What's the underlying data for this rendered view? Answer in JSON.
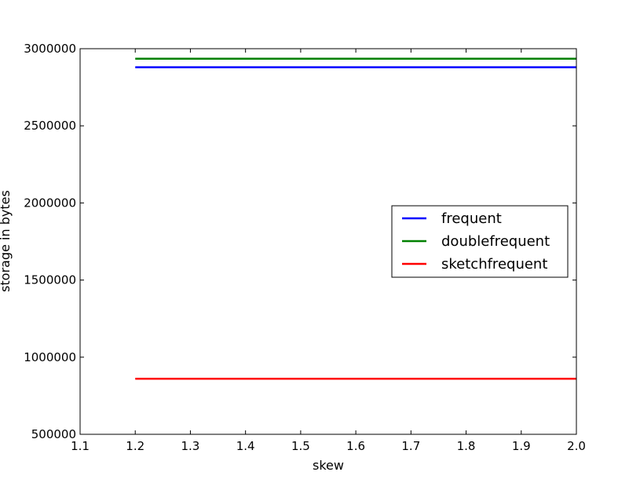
{
  "chart_data": {
    "type": "line",
    "xlabel": "skew",
    "ylabel": "storage in bytes",
    "xlim": [
      1.1,
      2.0
    ],
    "ylim": [
      500000,
      3000000
    ],
    "x_ticks": [
      "1.1",
      "1.2",
      "1.3",
      "1.4",
      "1.5",
      "1.6",
      "1.7",
      "1.8",
      "1.9",
      "2.0"
    ],
    "y_ticks": [
      "500000",
      "1000000",
      "1500000",
      "2000000",
      "2500000",
      "3000000"
    ],
    "legend_position": "center-right",
    "x": [
      1.2,
      1.3,
      1.4,
      1.5,
      1.6,
      1.7,
      1.8,
      1.9,
      2.0
    ],
    "series": [
      {
        "name": "frequent",
        "color": "#0000ff",
        "values": [
          2880000,
          2880000,
          2880000,
          2880000,
          2880000,
          2880000,
          2880000,
          2880000,
          2880000
        ]
      },
      {
        "name": "doublefrequent",
        "color": "#008000",
        "values": [
          2935000,
          2935000,
          2935000,
          2935000,
          2935000,
          2935000,
          2935000,
          2935000,
          2935000
        ]
      },
      {
        "name": "sketchfrequent",
        "color": "#ff0000",
        "values": [
          860000,
          860000,
          860000,
          860000,
          860000,
          860000,
          860000,
          860000,
          860000
        ]
      }
    ]
  }
}
